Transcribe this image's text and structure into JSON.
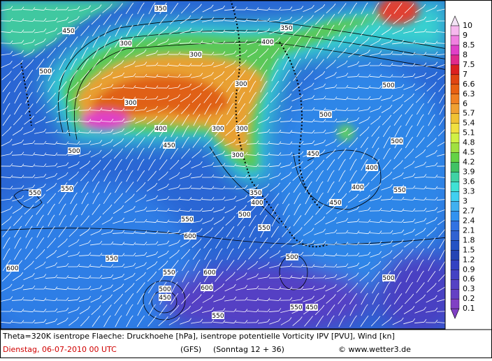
{
  "legend": {
    "items": [
      {
        "label": "10",
        "color": "#f4e4f6"
      },
      {
        "label": "9",
        "color": "#f6b8ee"
      },
      {
        "label": "8.5",
        "color": "#f080e0"
      },
      {
        "label": "8",
        "color": "#e040c8"
      },
      {
        "label": "7.5",
        "color": "#e02a8c"
      },
      {
        "label": "7",
        "color": "#dc2020"
      },
      {
        "label": "6.6",
        "color": "#e04412"
      },
      {
        "label": "6.3",
        "color": "#e86012"
      },
      {
        "label": "6",
        "color": "#f08022"
      },
      {
        "label": "5.7",
        "color": "#f0a032"
      },
      {
        "label": "5.4",
        "color": "#f0c234"
      },
      {
        "label": "5.1",
        "color": "#f0e040"
      },
      {
        "label": "4.8",
        "color": "#d0f044"
      },
      {
        "label": "4.5",
        "color": "#a0e040"
      },
      {
        "label": "4.2",
        "color": "#64d244"
      },
      {
        "label": "3.9",
        "color": "#40c264"
      },
      {
        "label": "3.6",
        "color": "#40d2a4"
      },
      {
        "label": "3.3",
        "color": "#40e2d4"
      },
      {
        "label": "3",
        "color": "#40d0f0"
      },
      {
        "label": "2.7",
        "color": "#40b0f0"
      },
      {
        "label": "2.4",
        "color": "#3292f0"
      },
      {
        "label": "2.1",
        "color": "#3272e2"
      },
      {
        "label": "1.8",
        "color": "#3062d2"
      },
      {
        "label": "1.5",
        "color": "#2452c4"
      },
      {
        "label": "1.2",
        "color": "#2444b4"
      },
      {
        "label": "0.9",
        "color": "#3442c2"
      },
      {
        "label": "0.6",
        "color": "#4442c4"
      },
      {
        "label": "0.3",
        "color": "#5442c4"
      },
      {
        "label": "0.2",
        "color": "#6440c4"
      },
      {
        "label": "0.1",
        "color": "#8040c4"
      }
    ]
  },
  "contour_labels": [
    "350",
    "300",
    "450",
    "300",
    "500",
    "300",
    "300",
    "400",
    "350",
    "500",
    "300",
    "400",
    "450",
    "300",
    "300",
    "400",
    "500",
    "450",
    "500",
    "550",
    "500",
    "550",
    "450",
    "400",
    "350",
    "400",
    "500",
    "550",
    "550",
    "600",
    "550",
    "550",
    "500",
    "600",
    "500",
    "450",
    "600",
    "550",
    "600",
    "550",
    "450",
    "500",
    "550"
  ],
  "footer": {
    "line1": "Theta=320K isentrope Flaeche: Druckhoehe [hPa], isentrope potentielle Vorticity IPV [PVU], Wind [kn]",
    "date": "Dienstag, 06-07-2010   00 UTC",
    "model": "(GFS)",
    "run": "(Sonntag 12 + 36)",
    "site": "© www.wetter3.de"
  }
}
